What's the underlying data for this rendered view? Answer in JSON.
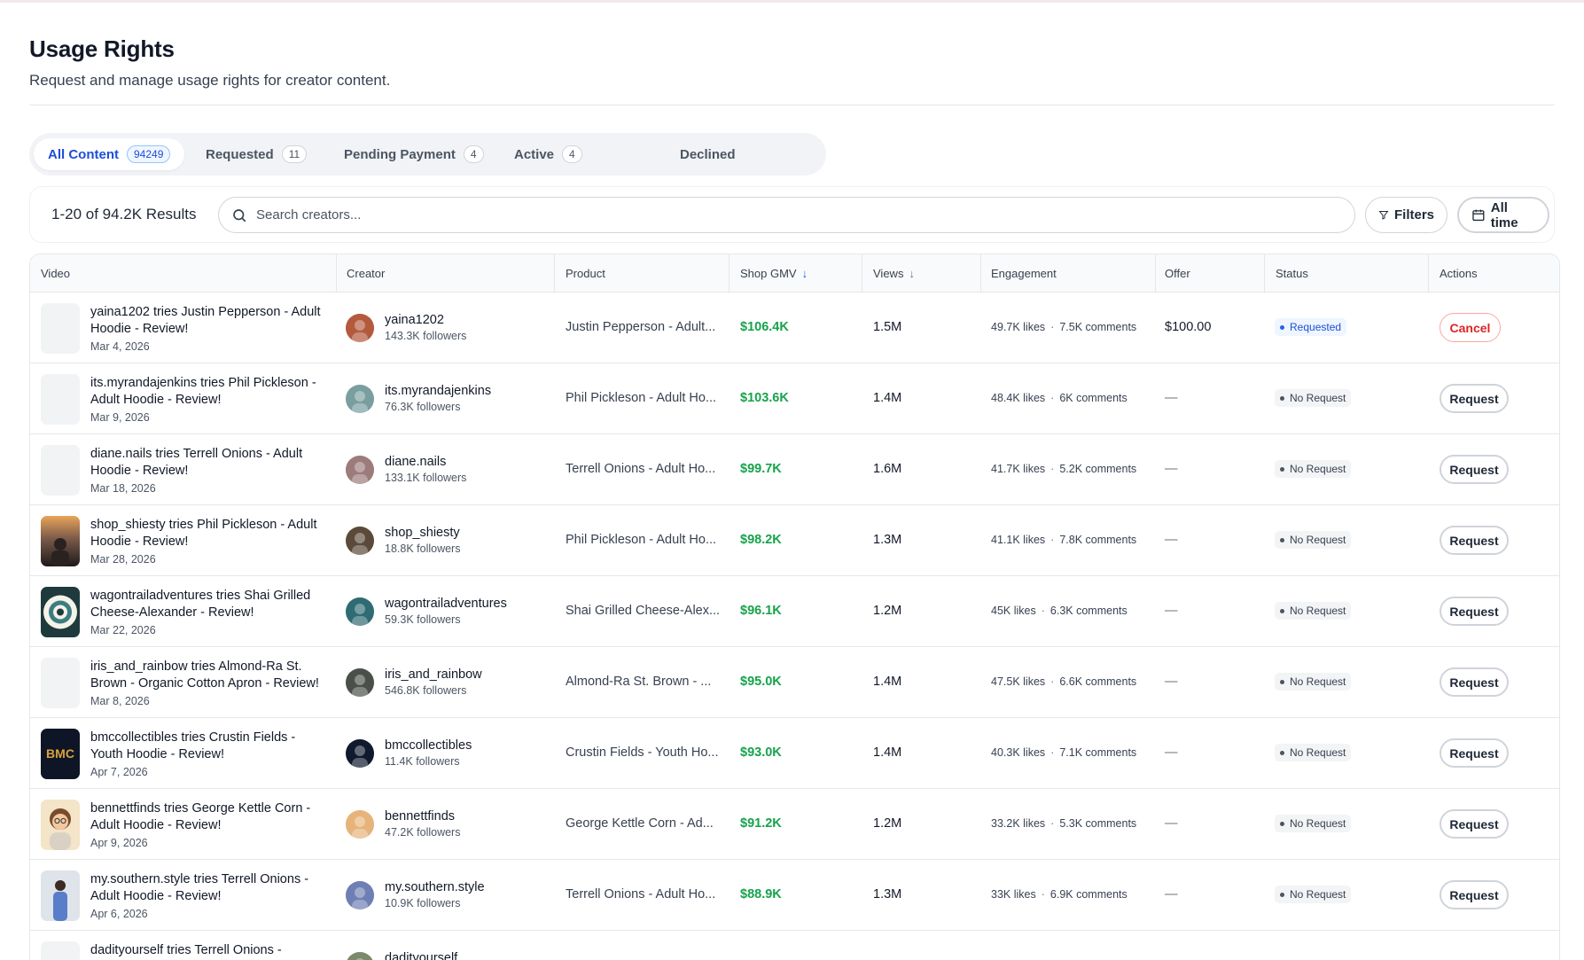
{
  "header": {
    "title": "Usage Rights",
    "subtitle": "Request and manage usage rights for creator content."
  },
  "tabs": [
    {
      "label": "All Content",
      "count": "94249",
      "active": true
    },
    {
      "label": "Requested",
      "count": "11"
    },
    {
      "label": "Pending Payment",
      "count": "4"
    },
    {
      "label": "Active",
      "count": "4"
    },
    {
      "label": "Declined",
      "count": ""
    }
  ],
  "toolbar": {
    "results": "1-20 of 94.2K Results",
    "search_placeholder": "Search creators...",
    "filters_label": "Filters",
    "time_label": "All time"
  },
  "table": {
    "headers": {
      "video": "Video",
      "creator": "Creator",
      "product": "Product",
      "gmv": "Shop GMV",
      "views": "Views",
      "engagement": "Engagement",
      "offer": "Offer",
      "status": "Status",
      "actions": "Actions"
    },
    "sort_icon": "arrow-down-icon",
    "rows": [
      {
        "video_title": "yaina1202 tries Justin Pepperson - Adult Hoodie - Review!",
        "date": "Mar 4, 2026",
        "creator": "yaina1202",
        "followers": "143.3K followers",
        "product": "Justin Pepperson - Adult...",
        "gmv": "$106.4K",
        "views": "1.5M",
        "likes": "49.7K likes",
        "comments": "7.5K comments",
        "offer": "$100.00",
        "status": "Requested",
        "action": "Cancel",
        "thumb": "blank",
        "avatar_color": "#b45a3c"
      },
      {
        "video_title": "its.myrandajenkins tries Phil Pickleson - Adult Hoodie - Review!",
        "date": "Mar 9, 2026",
        "creator": "its.myrandajenkins",
        "followers": "76.3K followers",
        "product": "Phil Pickleson - Adult Ho...",
        "gmv": "$103.6K",
        "views": "1.4M",
        "likes": "48.4K likes",
        "comments": "6K comments",
        "offer": "—",
        "status": "No Request",
        "action": "Request",
        "thumb": "blank",
        "avatar_color": "#7a9e9f"
      },
      {
        "video_title": "diane.nails tries Terrell Onions - Adult Hoodie - Review!",
        "date": "Mar 18, 2026",
        "creator": "diane.nails",
        "followers": "133.1K followers",
        "product": "Terrell Onions - Adult Ho...",
        "gmv": "$99.7K",
        "views": "1.6M",
        "likes": "41.7K likes",
        "comments": "5.2K comments",
        "offer": "—",
        "status": "No Request",
        "action": "Request",
        "thumb": "blank",
        "avatar_color": "#9c7b7b"
      },
      {
        "video_title": "shop_shiesty tries Phil Pickleson - Adult Hoodie - Review!",
        "date": "Mar 28, 2026",
        "creator": "shop_shiesty",
        "followers": "18.8K followers",
        "product": "Phil Pickleson - Adult Ho...",
        "gmv": "$98.2K",
        "views": "1.3M",
        "likes": "41.1K likes",
        "comments": "7.8K comments",
        "offer": "—",
        "status": "No Request",
        "action": "Request",
        "thumb": "sunset",
        "avatar_color": "#5b4a3a"
      },
      {
        "video_title": "wagontrailadventures tries Shai Grilled Cheese-Alexander - Review!",
        "date": "Mar 22, 2026",
        "creator": "wagontrailadventures",
        "followers": "59.3K followers",
        "product": "Shai Grilled Cheese-Alex...",
        "gmv": "$96.1K",
        "views": "1.2M",
        "likes": "45K likes",
        "comments": "6.3K comments",
        "offer": "—",
        "status": "No Request",
        "action": "Request",
        "thumb": "badge",
        "avatar_color": "#2f6b73"
      },
      {
        "video_title": "iris_and_rainbow tries Almond-Ra St. Brown - Organic Cotton Apron - Review!",
        "date": "Mar 8, 2026",
        "creator": "iris_and_rainbow",
        "followers": "546.8K followers",
        "product": "Almond-Ra St. Brown - ...",
        "gmv": "$95.0K",
        "views": "1.4M",
        "likes": "47.5K likes",
        "comments": "6.6K comments",
        "offer": "—",
        "status": "No Request",
        "action": "Request",
        "thumb": "blank",
        "avatar_color": "#4b4f4a"
      },
      {
        "video_title": "bmccollectibles tries Crustin Fields - Youth Hoodie - Review!",
        "date": "Apr 7, 2026",
        "creator": "bmccollectibles",
        "followers": "11.4K followers",
        "product": "Crustin Fields - Youth Ho...",
        "gmv": "$93.0K",
        "views": "1.4M",
        "likes": "40.3K likes",
        "comments": "7.1K comments",
        "offer": "—",
        "status": "No Request",
        "action": "Request",
        "thumb": "bmc",
        "avatar_color": "#0f1a2e"
      },
      {
        "video_title": "bennettfinds tries George Kettle Corn - Adult Hoodie - Review!",
        "date": "Apr 9, 2026",
        "creator": "bennettfinds",
        "followers": "47.2K followers",
        "product": "George Kettle Corn - Ad...",
        "gmv": "$91.2K",
        "views": "1.2M",
        "likes": "33.2K likes",
        "comments": "5.3K comments",
        "offer": "—",
        "status": "No Request",
        "action": "Request",
        "thumb": "cartoon",
        "avatar_color": "#e6b47a"
      },
      {
        "video_title": "my.southern.style tries Terrell Onions - Adult Hoodie - Review!",
        "date": "Apr 6, 2026",
        "creator": "my.southern.style",
        "followers": "10.9K followers",
        "product": "Terrell Onions - Adult Ho...",
        "gmv": "$88.9K",
        "views": "1.3M",
        "likes": "33K likes",
        "comments": "6.9K comments",
        "offer": "—",
        "status": "No Request",
        "action": "Request",
        "thumb": "person",
        "avatar_color": "#6d7fb3"
      },
      {
        "video_title": "dadityourself tries Terrell Onions - ",
        "date": "",
        "creator": "dadityourself",
        "followers": "",
        "product": "",
        "gmv": "",
        "views": "",
        "likes": "",
        "comments": "",
        "offer": "",
        "status": "",
        "action": "",
        "thumb": "blank",
        "avatar_color": "#7a8a6a"
      }
    ]
  },
  "colors": {
    "accent": "#1d4ed8",
    "gmv_green": "#16a34a",
    "cancel_red": "#dc2626"
  }
}
